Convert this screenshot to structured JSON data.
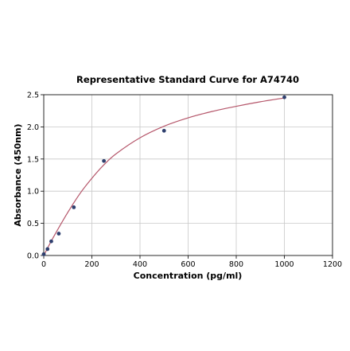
{
  "chart_data": {
    "type": "scatter",
    "title": "Representative Standard Curve for A74740",
    "xlabel": "Concentration (pg/ml)",
    "ylabel": "Absorbance (450nm)",
    "xlim": [
      0,
      1200
    ],
    "ylim": [
      0,
      2.5
    ],
    "xticks": [
      0,
      200,
      400,
      600,
      800,
      1000,
      1200
    ],
    "yticks": [
      0.0,
      0.5,
      1.0,
      1.5,
      2.0,
      2.5
    ],
    "xtick_labels": [
      "0",
      "200",
      "400",
      "600",
      "800",
      "1000",
      "1200"
    ],
    "ytick_labels": [
      "0.0",
      "0.5",
      "1.0",
      "1.5",
      "2.0",
      "2.5"
    ],
    "grid": true,
    "legend": "none",
    "points": {
      "x": [
        0,
        15.6,
        31.25,
        62.5,
        125,
        250,
        500,
        1000
      ],
      "y": [
        0.02,
        0.1,
        0.22,
        0.34,
        0.75,
        1.47,
        1.94,
        2.46
      ]
    },
    "fit_curve": {
      "x": [
        0,
        25,
        50,
        100,
        150,
        200,
        250,
        300,
        400,
        500,
        600,
        700,
        800,
        900,
        1000
      ],
      "y": [
        0.0,
        0.18,
        0.35,
        0.67,
        0.96,
        1.2,
        1.41,
        1.58,
        1.83,
        2.01,
        2.14,
        2.24,
        2.32,
        2.39,
        2.45
      ]
    },
    "point_color": "#2e3f6e",
    "curve_color": "#b5566a"
  }
}
